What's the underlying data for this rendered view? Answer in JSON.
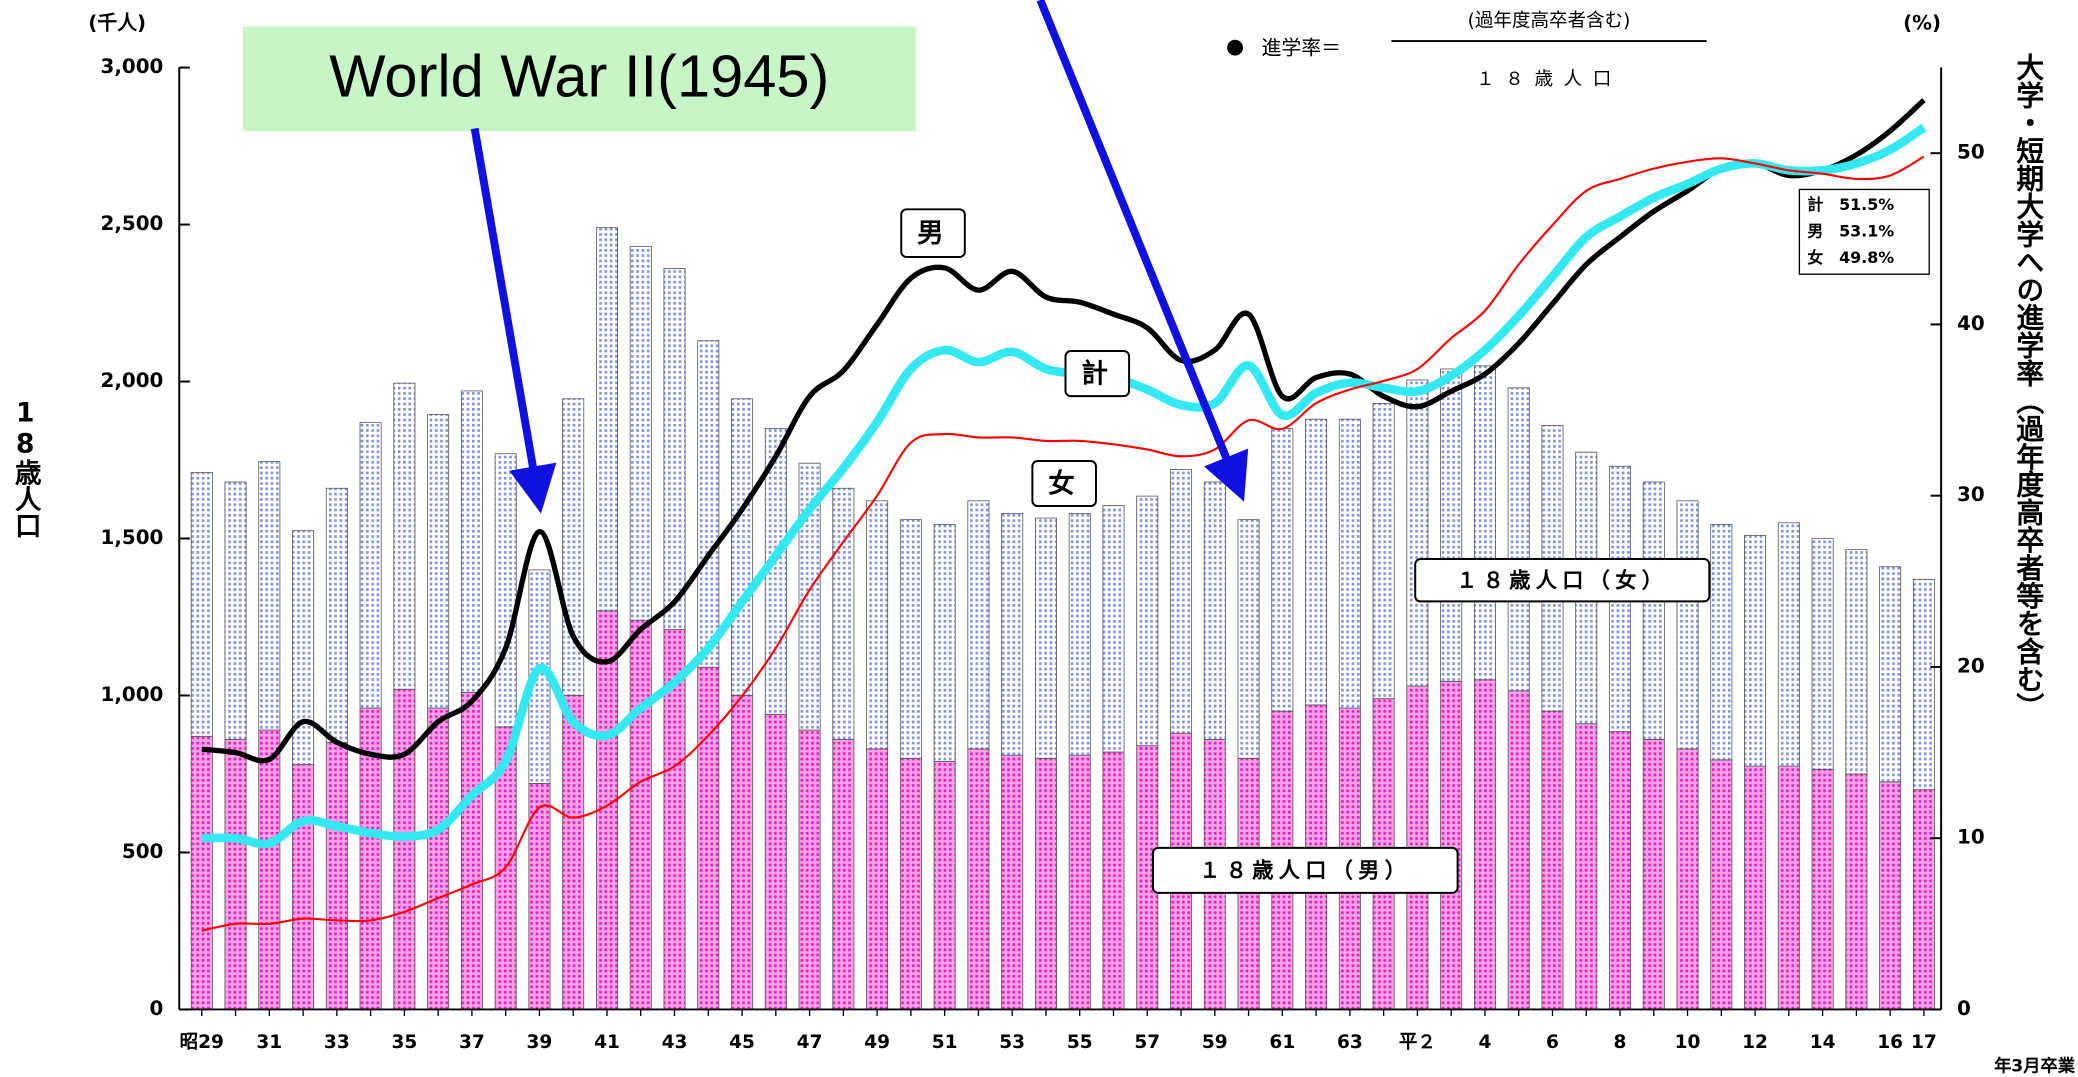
{
  "chart_data": {
    "type": "bar",
    "y_unit_label": "(千人)",
    "y2_unit_label": "(%)",
    "ylabel": "18歳人口",
    "y2label": "大学・短期大学への進学率（過年度高卒者等を含む）",
    "xlabel": "年3月卒業",
    "formula": {
      "prefix": "進学率＝",
      "numerator": "(過年度高卒者含む)",
      "denominator": "１８歳人口"
    },
    "categories": [
      "昭29",
      null,
      "31",
      null,
      "33",
      null,
      "35",
      null,
      "37",
      null,
      "39",
      null,
      "41",
      null,
      "43",
      null,
      "45",
      null,
      "47",
      null,
      "49",
      null,
      "51",
      null,
      "53",
      null,
      "55",
      null,
      "57",
      null,
      "59",
      null,
      "61",
      null,
      "63",
      null,
      "平２",
      null,
      "4",
      null,
      "6",
      null,
      "8",
      null,
      "10",
      null,
      "12",
      null,
      "14",
      null,
      "16",
      "17"
    ],
    "series": [
      {
        "name": "１８歳人口（男）",
        "type": "bar",
        "color": "#ee33cc",
        "values": [
          870,
          860,
          890,
          780,
          850,
          960,
          1020,
          960,
          1010,
          900,
          720,
          1000,
          1270,
          1240,
          1210,
          1090,
          1000,
          940,
          890,
          860,
          830,
          800,
          790,
          830,
          810,
          800,
          810,
          820,
          840,
          880,
          860,
          800,
          950,
          970,
          960,
          990,
          1030,
          1045,
          1050,
          1015,
          950,
          910,
          885,
          860,
          830,
          795,
          775,
          775,
          765,
          750,
          725,
          700
        ]
      },
      {
        "name": "１８歳人口（女）",
        "type": "bar",
        "color": "#8090e0",
        "values": [
          840,
          820,
          855,
          745,
          810,
          910,
          975,
          935,
          960,
          870,
          680,
          945,
          1220,
          1190,
          1150,
          1040,
          945,
          910,
          850,
          800,
          790,
          760,
          755,
          790,
          770,
          765,
          770,
          785,
          795,
          840,
          820,
          760,
          900,
          910,
          920,
          940,
          975,
          995,
          1000,
          965,
          910,
          865,
          845,
          820,
          790,
          750,
          735,
          775,
          735,
          715,
          685,
          670
        ]
      },
      {
        "name": "男",
        "type": "line",
        "axis": "y2",
        "color": "#000000",
        "values": [
          15.2,
          15.0,
          14.6,
          16.8,
          15.6,
          14.9,
          14.9,
          16.8,
          18.0,
          21.1,
          27.9,
          21.8,
          20.3,
          22.2,
          23.8,
          26.5,
          29.2,
          32.3,
          35.8,
          37.3,
          40.0,
          42.7,
          43.3,
          42.0,
          43.1,
          41.6,
          41.3,
          40.6,
          39.8,
          37.9,
          38.5,
          40.6,
          35.8,
          36.9,
          37.1,
          35.8,
          35.2,
          36.1,
          37.1,
          38.9,
          41.2,
          43.5,
          45.1,
          46.6,
          47.8,
          49.1,
          49.4,
          48.7,
          49.0,
          49.9,
          51.3,
          53.1
        ]
      },
      {
        "name": "計",
        "type": "line",
        "axis": "y2",
        "color": "#33e8f0",
        "values": [
          10.0,
          10.0,
          9.7,
          11.0,
          10.7,
          10.3,
          10.1,
          10.5,
          12.5,
          14.5,
          19.9,
          16.8,
          16.0,
          17.6,
          19.1,
          21.1,
          23.8,
          26.5,
          29.2,
          31.6,
          34.3,
          37.4,
          38.5,
          37.8,
          38.4,
          37.4,
          37.1,
          36.9,
          36.2,
          35.3,
          35.4,
          37.6,
          34.7,
          36.0,
          36.6,
          36.3,
          36.1,
          37.0,
          38.5,
          40.5,
          42.8,
          45.1,
          46.3,
          47.4,
          48.2,
          49.1,
          49.4,
          49.0,
          49.0,
          49.4,
          50.2,
          51.5
        ]
      },
      {
        "name": "女",
        "type": "line",
        "axis": "y2",
        "color": "#ff0000",
        "values": [
          4.6,
          5.0,
          5.0,
          5.3,
          5.2,
          5.2,
          5.7,
          6.5,
          7.3,
          8.3,
          11.8,
          11.2,
          11.9,
          13.3,
          14.2,
          16.0,
          18.3,
          21.1,
          24.5,
          27.3,
          30.0,
          33.1,
          33.6,
          33.4,
          33.4,
          33.2,
          33.2,
          33.0,
          32.7,
          32.3,
          32.7,
          34.4,
          33.9,
          35.4,
          36.2,
          36.7,
          37.4,
          39.2,
          40.8,
          43.5,
          45.8,
          47.8,
          48.5,
          49.1,
          49.5,
          49.7,
          49.4,
          49.0,
          48.8,
          48.5,
          48.7,
          49.8
        ]
      }
    ],
    "ylim": [
      0,
      3000
    ],
    "yticks": [
      0,
      500,
      {
        "value": 1000,
        "label": "1,000"
      },
      {
        "value": 1500,
        "label": "1,500"
      },
      {
        "value": 2000,
        "label": "2,000"
      },
      {
        "value": 2500,
        "label": "2,500"
      },
      {
        "value": 3000,
        "label": "3,000"
      }
    ],
    "y2lim": [
      0,
      55
    ],
    "y2ticks": [
      0,
      10,
      20,
      30,
      40,
      50
    ],
    "end_labels": [
      "計　51.5%",
      "男　53.1%",
      "女　49.8%"
    ],
    "annotations": [
      "World War II(1945)"
    ]
  }
}
